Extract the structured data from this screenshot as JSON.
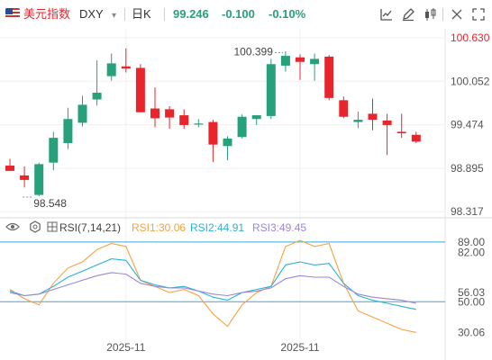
{
  "header": {
    "name": "美元指数",
    "symbol": "DXY",
    "period": "日K",
    "price": "99.246",
    "change": "-0.100",
    "change_pct": "-0.10%"
  },
  "colors": {
    "up": "#26a17b",
    "down": "#e8242c",
    "price_label": "#e8242c",
    "rsi1": "#f5a142",
    "rsi2": "#2ab3d1",
    "rsi3": "#9b86d9",
    "rsi_ref_line": "#3ba7d8"
  },
  "rsi_header": {
    "label": "RSI(7,14,21)",
    "rsi1": "RSI1:30.06",
    "rsi2": "RSI2:44.91",
    "rsi3": "RSI3:49.45"
  },
  "chart_data": [
    {
      "type": "candlestick",
      "y_ticks": [
        "100.630",
        "100.052",
        "99.474",
        "98.895",
        "98.317"
      ],
      "ylim": [
        98.26,
        100.75
      ],
      "annotations": {
        "high": "100.399",
        "low": "98.548"
      },
      "candles": [
        {
          "o": 98.93,
          "h": 99.02,
          "l": 98.86,
          "c": 98.86
        },
        {
          "o": 98.8,
          "h": 98.92,
          "l": 98.64,
          "c": 98.74
        },
        {
          "o": 98.54,
          "h": 98.97,
          "l": 98.52,
          "c": 98.95
        },
        {
          "o": 98.97,
          "h": 99.38,
          "l": 98.87,
          "c": 99.3
        },
        {
          "o": 99.23,
          "h": 99.7,
          "l": 99.15,
          "c": 99.55
        },
        {
          "o": 99.5,
          "h": 99.86,
          "l": 99.45,
          "c": 99.74
        },
        {
          "o": 99.81,
          "h": 100.33,
          "l": 99.73,
          "c": 99.9
        },
        {
          "o": 100.12,
          "h": 100.42,
          "l": 100.06,
          "c": 100.29
        },
        {
          "o": 100.25,
          "h": 100.49,
          "l": 100.17,
          "c": 100.22
        },
        {
          "o": 100.23,
          "h": 100.28,
          "l": 99.64,
          "c": 99.64
        },
        {
          "o": 99.69,
          "h": 99.97,
          "l": 99.44,
          "c": 99.56
        },
        {
          "o": 99.68,
          "h": 99.72,
          "l": 99.42,
          "c": 99.57
        },
        {
          "o": 99.6,
          "h": 99.68,
          "l": 99.42,
          "c": 99.47
        },
        {
          "o": 99.49,
          "h": 99.55,
          "l": 99.44,
          "c": 99.49
        },
        {
          "o": 99.51,
          "h": 99.54,
          "l": 98.98,
          "c": 99.21
        },
        {
          "o": 99.19,
          "h": 99.32,
          "l": 99.0,
          "c": 99.29
        },
        {
          "o": 99.31,
          "h": 99.61,
          "l": 99.29,
          "c": 99.58
        },
        {
          "o": 99.55,
          "h": 99.59,
          "l": 99.47,
          "c": 99.6
        },
        {
          "o": 99.59,
          "h": 100.35,
          "l": 99.55,
          "c": 100.28
        },
        {
          "o": 100.26,
          "h": 100.45,
          "l": 100.18,
          "c": 100.39
        },
        {
          "o": 100.37,
          "h": 100.41,
          "l": 100.07,
          "c": 100.31
        },
        {
          "o": 100.28,
          "h": 100.42,
          "l": 100.06,
          "c": 100.35
        },
        {
          "o": 100.38,
          "h": 100.4,
          "l": 99.8,
          "c": 99.83
        },
        {
          "o": 99.8,
          "h": 99.85,
          "l": 99.56,
          "c": 99.58
        },
        {
          "o": 99.51,
          "h": 99.65,
          "l": 99.43,
          "c": 99.54
        },
        {
          "o": 99.62,
          "h": 99.82,
          "l": 99.4,
          "c": 99.54
        },
        {
          "o": 99.53,
          "h": 99.62,
          "l": 99.07,
          "c": 99.47
        },
        {
          "o": 99.38,
          "h": 99.62,
          "l": 99.3,
          "c": 99.36
        },
        {
          "o": 99.34,
          "h": 99.38,
          "l": 99.23,
          "c": 99.25
        }
      ]
    },
    {
      "type": "line",
      "y_ticks": [
        "89.00",
        "82.00",
        "56.03",
        "50.00",
        "30.06"
      ],
      "ylim": [
        22,
        93
      ],
      "ref_lines": [
        89,
        50
      ],
      "x_labels": [
        {
          "label": "2025-11",
          "index": 8
        },
        {
          "label": "2025-11",
          "index": 20
        }
      ],
      "series": [
        {
          "name": "RSI1",
          "values": [
            58,
            52,
            48,
            62,
            72,
            76,
            84,
            88,
            86,
            64,
            60,
            56,
            58,
            54,
            42,
            34,
            48,
            56,
            60,
            86,
            90,
            86,
            88,
            62,
            44,
            40,
            36,
            32,
            30
          ]
        },
        {
          "name": "RSI2",
          "values": [
            57,
            54,
            55,
            60,
            66,
            70,
            74,
            78,
            77,
            64,
            61,
            59,
            60,
            57,
            53,
            51,
            56,
            58,
            60,
            74,
            76,
            74,
            75,
            62,
            54,
            51,
            49,
            47,
            45
          ]
        },
        {
          "name": "RSI3",
          "values": [
            56,
            54,
            55,
            58,
            61,
            64,
            67,
            69,
            68,
            62,
            60,
            59,
            59,
            57,
            55,
            54,
            56,
            57,
            59,
            65,
            67,
            66,
            66,
            60,
            55,
            53,
            52,
            51,
            49
          ]
        }
      ]
    }
  ]
}
